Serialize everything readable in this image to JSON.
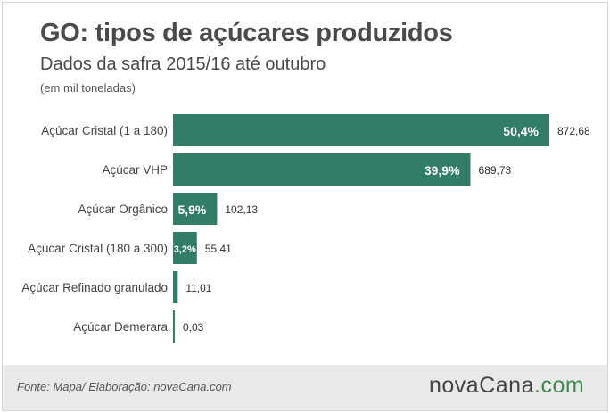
{
  "header": {
    "title": "GO: tipos de açúcares produzidos",
    "subtitle": "Dados da safra 2015/16 até outubro",
    "unit_note": "(em mil toneladas)"
  },
  "footer": {
    "source": "Fonte: Mapa/ Elaboração: novaCana.com",
    "logo_main": "novaCana",
    "logo_dot": ".",
    "logo_tld": "com"
  },
  "colors": {
    "bar": "#327d68",
    "logo_accent": "#3a8a4e"
  },
  "chart_data": {
    "type": "bar",
    "orientation": "horizontal",
    "title": "GO: tipos de açúcares produzidos",
    "subtitle": "Dados da safra 2015/16 até outubro",
    "unit": "(em mil toneladas)",
    "categories": [
      "Açúcar Cristal (1 a 180)",
      "Açúcar VHP",
      "Açúcar Orgânico",
      "Açúcar Cristal (180 a 300)",
      "Açúcar Refinado granulado",
      "Açúcar Demerara"
    ],
    "values": [
      872.68,
      689.73,
      102.13,
      55.41,
      11.01,
      0.03
    ],
    "value_labels": [
      "872,68",
      "689,73",
      "102,13",
      "55,41",
      "11,01",
      "0,03"
    ],
    "percent_labels": [
      "50,4%",
      "39,9%",
      "5,9%",
      "3,2%",
      "",
      ""
    ],
    "xlim": [
      0,
      872.68
    ],
    "grid": false,
    "legend": "none"
  }
}
